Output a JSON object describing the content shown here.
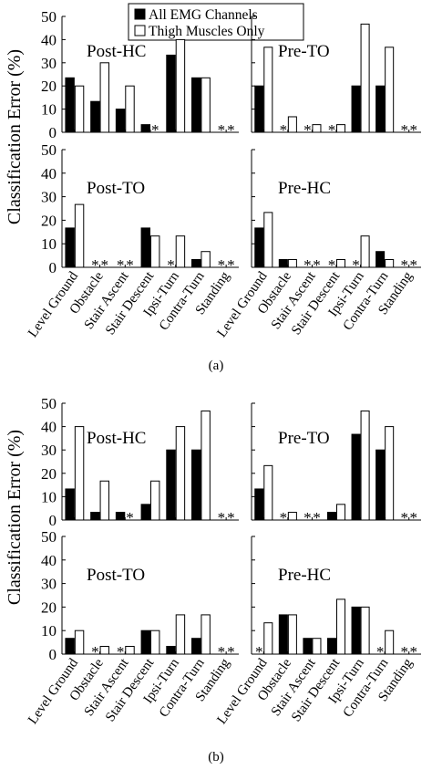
{
  "legend": {
    "series": [
      "All EMG Channels",
      "Thigh Muscles Only"
    ]
  },
  "y_label": "Classification Error (%)",
  "chart_data": [
    {
      "type": "bar",
      "figure": "a",
      "caption": "(a)",
      "ylim": [
        0,
        50
      ],
      "yticks": [
        0,
        10,
        20,
        30,
        40,
        50
      ],
      "categories": [
        "Level Ground",
        "Obstacle",
        "Stair Ascent",
        "Stair Descent",
        "Ipsi-Turn",
        "Contra-Turn",
        "Standing"
      ],
      "panels": [
        {
          "label": "Post-HC",
          "series": [
            {
              "name": "All EMG Channels",
              "values": [
                23.5,
                13.3,
                10,
                3.3,
                33.3,
                23.5,
                0
              ]
            },
            {
              "name": "Thigh Muscles Only",
              "values": [
                20,
                30,
                20,
                0,
                40,
                23.5,
                0
              ]
            }
          ]
        },
        {
          "label": "Pre-TO",
          "series": [
            {
              "name": "All EMG Channels",
              "values": [
                20,
                0,
                0,
                0,
                20,
                20,
                0
              ]
            },
            {
              "name": "Thigh Muscles Only",
              "values": [
                36.7,
                6.7,
                3.3,
                3.3,
                46.7,
                36.7,
                0
              ]
            }
          ]
        },
        {
          "label": "Post-TO",
          "series": [
            {
              "name": "All EMG Channels",
              "values": [
                16.7,
                0,
                0,
                16.7,
                0,
                3.3,
                0
              ]
            },
            {
              "name": "Thigh Muscles Only",
              "values": [
                26.7,
                0,
                0,
                13.3,
                13.3,
                6.7,
                0
              ]
            }
          ]
        },
        {
          "label": "Pre-HC",
          "series": [
            {
              "name": "All EMG Channels",
              "values": [
                16.7,
                3.3,
                0,
                0,
                0,
                6.7,
                0
              ]
            },
            {
              "name": "Thigh Muscles Only",
              "values": [
                23.3,
                3.3,
                0,
                3.3,
                13.3,
                3.3,
                0
              ]
            }
          ]
        }
      ]
    },
    {
      "type": "bar",
      "figure": "b",
      "caption": "(b)",
      "ylim": [
        0,
        50
      ],
      "yticks": [
        0,
        10,
        20,
        30,
        40,
        50
      ],
      "categories": [
        "Level Ground",
        "Obstacle",
        "Stair Ascent",
        "Stair Descent",
        "Ipsi-Turn",
        "Contra-Turn",
        "Standing"
      ],
      "panels": [
        {
          "label": "Post-HC",
          "series": [
            {
              "name": "All EMG Channels",
              "values": [
                13.3,
                3.3,
                3.3,
                6.7,
                30,
                30,
                0
              ]
            },
            {
              "name": "Thigh Muscles Only",
              "values": [
                40,
                16.7,
                0,
                16.7,
                40,
                46.7,
                0
              ]
            }
          ]
        },
        {
          "label": "Pre-TO",
          "series": [
            {
              "name": "All EMG Channels",
              "values": [
                13.3,
                0,
                0,
                3.3,
                36.7,
                30,
                0
              ]
            },
            {
              "name": "Thigh Muscles Only",
              "values": [
                23.3,
                3.3,
                0,
                6.7,
                46.7,
                40,
                0
              ]
            }
          ]
        },
        {
          "label": "Post-TO",
          "series": [
            {
              "name": "All EMG Channels",
              "values": [
                6.7,
                0,
                0,
                10,
                3.3,
                6.7,
                0
              ]
            },
            {
              "name": "Thigh Muscles Only",
              "values": [
                10,
                3.3,
                3.3,
                10,
                16.7,
                16.7,
                0
              ]
            }
          ]
        },
        {
          "label": "Pre-HC",
          "series": [
            {
              "name": "All EMG Channels",
              "values": [
                0,
                16.7,
                6.7,
                6.7,
                20,
                0,
                0
              ]
            },
            {
              "name": "Thigh Muscles Only",
              "values": [
                13.3,
                16.7,
                6.7,
                23.3,
                20,
                10,
                0
              ]
            }
          ]
        }
      ]
    }
  ]
}
